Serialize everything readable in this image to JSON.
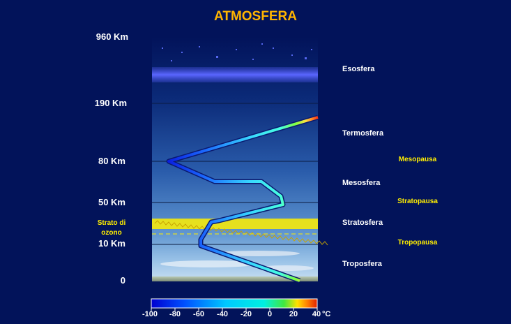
{
  "title": "ATMOSFERA",
  "altitudes": [
    {
      "id": "alt-960",
      "label": "960 Km"
    },
    {
      "id": "alt-190",
      "label": "190 Km"
    },
    {
      "id": "alt-80",
      "label": "80 Km"
    },
    {
      "id": "alt-50",
      "label": "50 Km"
    },
    {
      "id": "alt-10",
      "label": "10 Km"
    },
    {
      "id": "alt-0",
      "label": "0"
    }
  ],
  "ozone_label": [
    "Strato di",
    "ozono"
  ],
  "layers": [
    "Esosfera",
    "Termosfera",
    "Mesosfera",
    "Stratosfera",
    "Troposfera"
  ],
  "pauses": [
    "Mesopausa",
    "Stratopausa",
    "Tropopausa"
  ],
  "scale": {
    "ticks": [
      "-100",
      "-80",
      "-60",
      "-40",
      "-20",
      "0",
      "20",
      "40"
    ],
    "unit": "°C",
    "colors": [
      "#0000d0",
      "#0050ff",
      "#00a8ff",
      "#00e8f0",
      "#30e840",
      "#ffe000",
      "#ff8000",
      "#e02000"
    ]
  }
}
